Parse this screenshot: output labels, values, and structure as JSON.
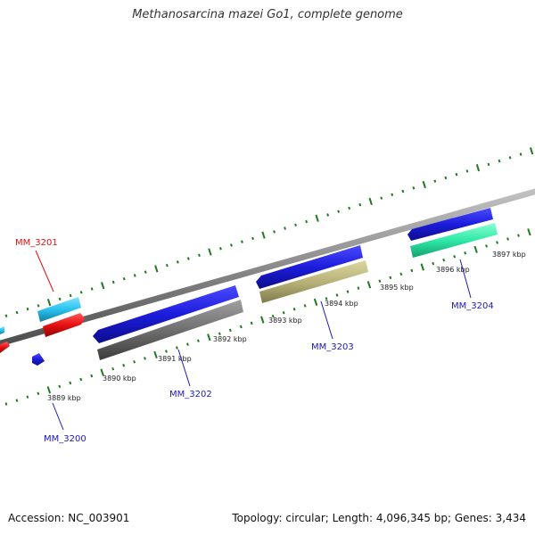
{
  "title": "Methanosarcina mazei Go1, complete genome",
  "accession": "Accession: NC_003901",
  "stats": "Topology: circular; Length: 4,096,345 bp; Genes: 3,434",
  "ticks": [
    "3889 kbp",
    "3890 kbp",
    "3891 kbp",
    "3892 kbp",
    "3893 kbp",
    "3894 kbp",
    "3895 kbp",
    "3896 kbp",
    "3897 kbp"
  ],
  "genes": [
    {
      "name": "MM_3200",
      "color": "#1a1ab8"
    },
    {
      "name": "MM_3201",
      "color": "#dd1111"
    },
    {
      "name": "MM_3202",
      "color": "#1a1ab8"
    },
    {
      "name": "MM_3203",
      "color": "#1a1ab8"
    },
    {
      "name": "MM_3204",
      "color": "#1a1ab8"
    }
  ],
  "colors": {
    "backbone": "#8a8a8a",
    "tick": "#1f7a1f",
    "blue_cds": "#1c1cdc",
    "cyan_cds": "#29c3f0",
    "red_cds": "#e81010",
    "gray_cds": "#6f6f6f",
    "khaki_cds": "#b8b27a",
    "teal_cds": "#2fe8a8"
  }
}
